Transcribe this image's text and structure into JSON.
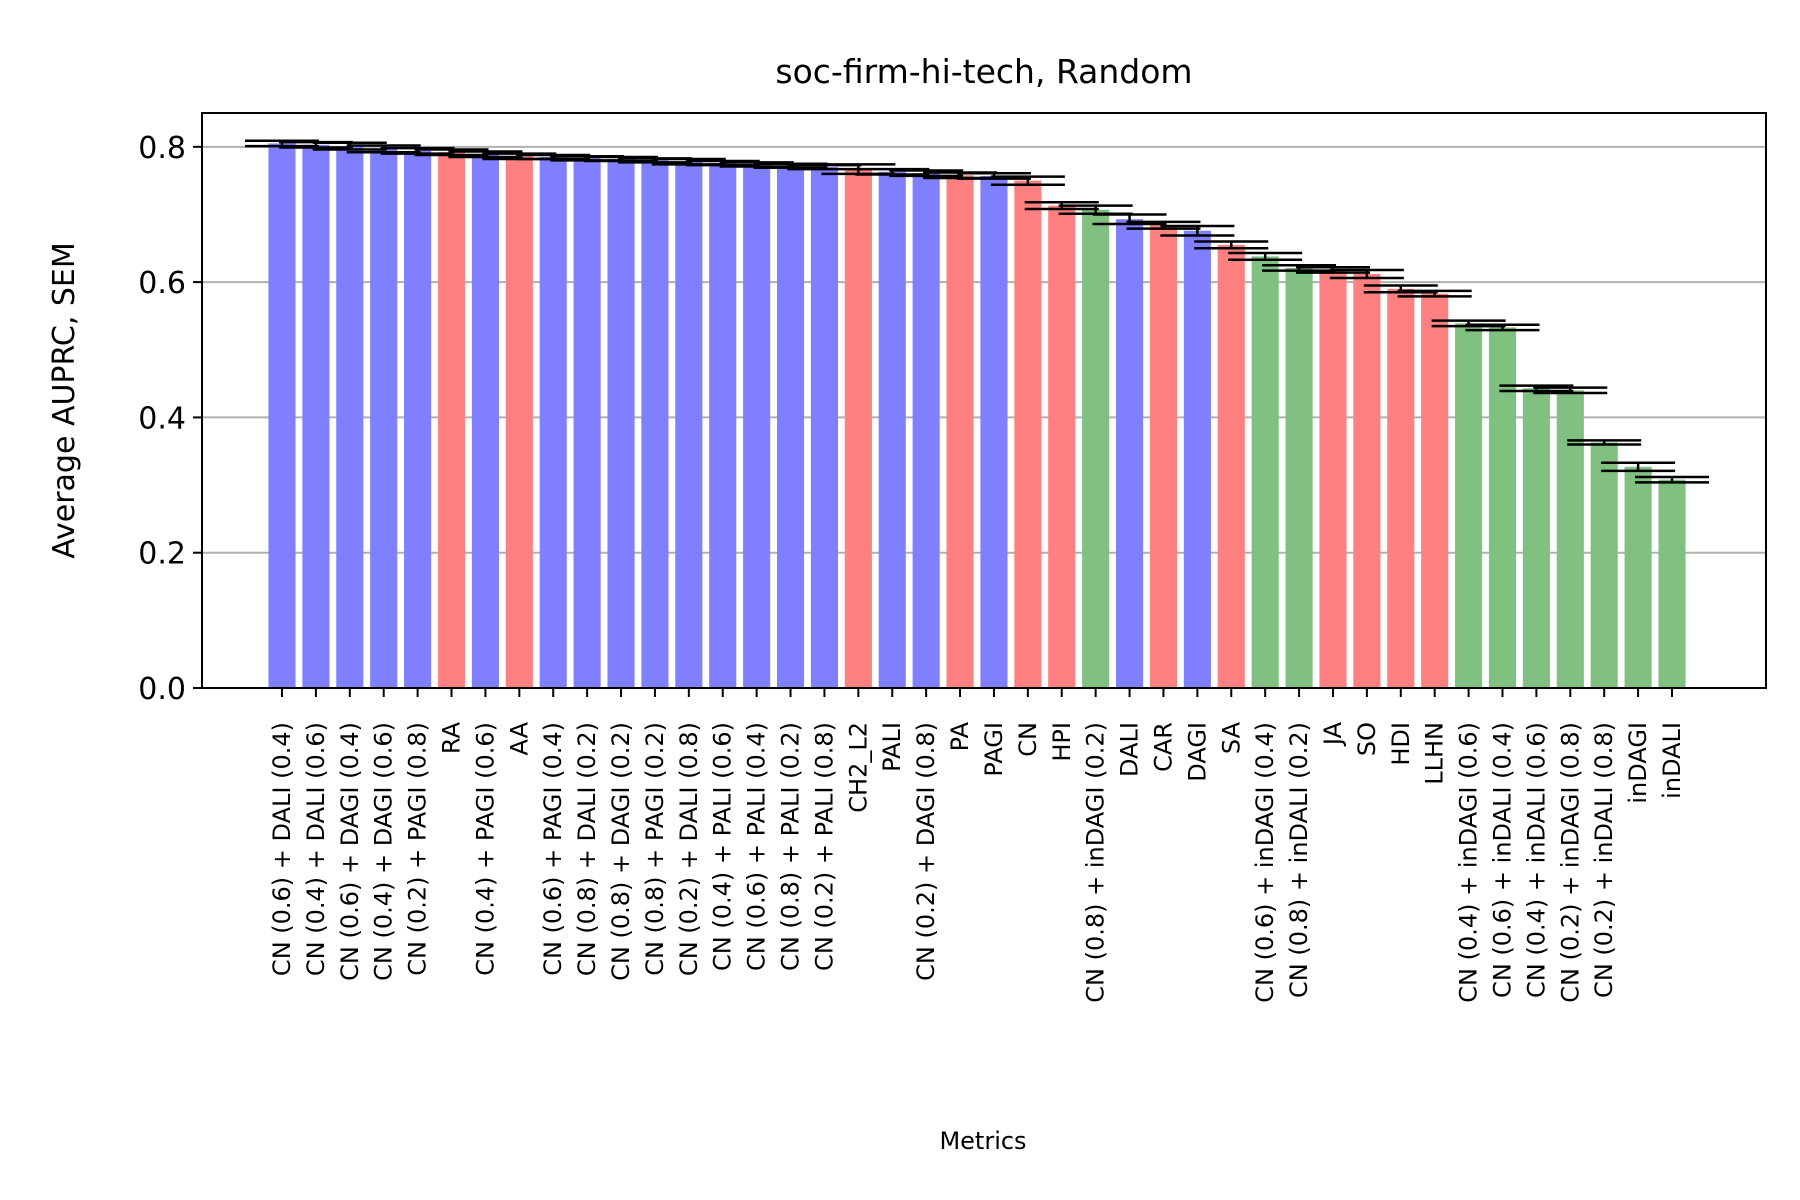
{
  "chart_data": {
    "type": "bar",
    "title": "soc-firm-hi-tech, Random",
    "xlabel": "Metrics",
    "ylabel": "Average AUPRC, SEM",
    "ylim": [
      0,
      0.85
    ],
    "yticks": [
      "0.0",
      "0.2",
      "0.4",
      "0.6",
      "0.8"
    ],
    "grid": "horizontal",
    "colors": {
      "blue": "#8080ff",
      "red": "#ff8080",
      "green": "#80c080"
    },
    "bars": [
      {
        "label": "CN (0.6) + DALI (0.4)",
        "value": 0.805,
        "err": 0.004,
        "color": "blue"
      },
      {
        "label": "CN (0.4) + DALI (0.6)",
        "value": 0.803,
        "err": 0.004,
        "color": "blue"
      },
      {
        "label": "CN (0.6) + DAGI (0.4)",
        "value": 0.801,
        "err": 0.005,
        "color": "blue"
      },
      {
        "label": "CN (0.4) + DAGI (0.6)",
        "value": 0.797,
        "err": 0.005,
        "color": "blue"
      },
      {
        "label": "CN (0.2) + PAGI (0.8)",
        "value": 0.794,
        "err": 0.004,
        "color": "blue"
      },
      {
        "label": "RA",
        "value": 0.792,
        "err": 0.004,
        "color": "red"
      },
      {
        "label": "CN (0.4) + PAGI (0.6)",
        "value": 0.789,
        "err": 0.004,
        "color": "blue"
      },
      {
        "label": "AA",
        "value": 0.786,
        "err": 0.004,
        "color": "red"
      },
      {
        "label": "CN (0.6) + PAGI (0.4)",
        "value": 0.785,
        "err": 0.003,
        "color": "blue"
      },
      {
        "label": "CN (0.8) + DALI (0.2)",
        "value": 0.783,
        "err": 0.003,
        "color": "blue"
      },
      {
        "label": "CN (0.8) + DAGI (0.2)",
        "value": 0.782,
        "err": 0.003,
        "color": "blue"
      },
      {
        "label": "CN (0.8) + PAGI (0.2)",
        "value": 0.78,
        "err": 0.003,
        "color": "blue"
      },
      {
        "label": "CN (0.2) + DALI (0.8)",
        "value": 0.778,
        "err": 0.004,
        "color": "blue"
      },
      {
        "label": "CN (0.4) + PALI (0.6)",
        "value": 0.776,
        "err": 0.003,
        "color": "blue"
      },
      {
        "label": "CN (0.6) + PALI (0.4)",
        "value": 0.774,
        "err": 0.003,
        "color": "blue"
      },
      {
        "label": "CN (0.8) + PALI (0.2)",
        "value": 0.772,
        "err": 0.003,
        "color": "blue"
      },
      {
        "label": "CN (0.2) + PALI (0.8)",
        "value": 0.77,
        "err": 0.003,
        "color": "blue"
      },
      {
        "label": "CH2_L2",
        "value": 0.767,
        "err": 0.007,
        "color": "red"
      },
      {
        "label": "PALI",
        "value": 0.763,
        "err": 0.004,
        "color": "blue"
      },
      {
        "label": "CN (0.2) + DAGI (0.8)",
        "value": 0.761,
        "err": 0.004,
        "color": "blue"
      },
      {
        "label": "PA",
        "value": 0.758,
        "err": 0.004,
        "color": "red"
      },
      {
        "label": "PAGI",
        "value": 0.757,
        "err": 0.004,
        "color": "blue"
      },
      {
        "label": "CN",
        "value": 0.75,
        "err": 0.006,
        "color": "red"
      },
      {
        "label": "HPI",
        "value": 0.713,
        "err": 0.005,
        "color": "red"
      },
      {
        "label": "CN (0.8) + inDAGI (0.2)",
        "value": 0.707,
        "err": 0.006,
        "color": "green"
      },
      {
        "label": "DALI",
        "value": 0.693,
        "err": 0.007,
        "color": "blue"
      },
      {
        "label": "CAR",
        "value": 0.684,
        "err": 0.005,
        "color": "red"
      },
      {
        "label": "DAGI",
        "value": 0.676,
        "err": 0.007,
        "color": "blue"
      },
      {
        "label": "SA",
        "value": 0.655,
        "err": 0.005,
        "color": "red"
      },
      {
        "label": "CN (0.6) + inDAGI (0.4)",
        "value": 0.638,
        "err": 0.005,
        "color": "green"
      },
      {
        "label": "CN (0.8) + inDALI (0.2)",
        "value": 0.621,
        "err": 0.004,
        "color": "green"
      },
      {
        "label": "JA",
        "value": 0.618,
        "err": 0.004,
        "color": "red"
      },
      {
        "label": "SO",
        "value": 0.612,
        "err": 0.006,
        "color": "red"
      },
      {
        "label": "HDI",
        "value": 0.59,
        "err": 0.005,
        "color": "red"
      },
      {
        "label": "LLHN",
        "value": 0.583,
        "err": 0.004,
        "color": "red"
      },
      {
        "label": "CN (0.4) + inDAGI (0.6)",
        "value": 0.539,
        "err": 0.004,
        "color": "green"
      },
      {
        "label": "CN (0.6) + inDALI (0.4)",
        "value": 0.533,
        "err": 0.004,
        "color": "green"
      },
      {
        "label": "CN (0.4) + inDALI (0.6)",
        "value": 0.443,
        "err": 0.004,
        "color": "green"
      },
      {
        "label": "CN (0.2) + inDAGI (0.8)",
        "value": 0.44,
        "err": 0.004,
        "color": "green"
      },
      {
        "label": "CN (0.2) + inDALI (0.8)",
        "value": 0.363,
        "err": 0.003,
        "color": "green"
      },
      {
        "label": "inDAGI",
        "value": 0.327,
        "err": 0.006,
        "color": "green"
      },
      {
        "label": "inDALI",
        "value": 0.308,
        "err": 0.004,
        "color": "green"
      }
    ]
  }
}
